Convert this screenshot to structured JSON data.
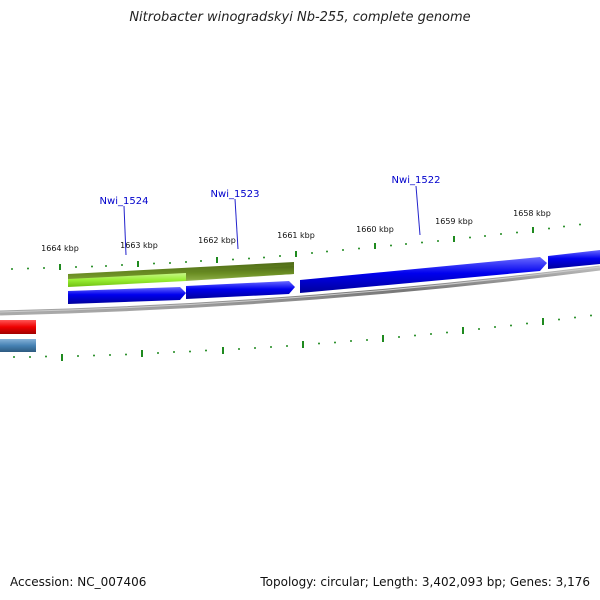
{
  "title": "Nitrobacter winogradskyi Nb-255, complete genome",
  "footer": {
    "accession": "Accession: NC_007406",
    "summary": "Topology: circular; Length: 3,402,093 bp; Genes: 3,176"
  },
  "colors": {
    "backbone": "#888888",
    "tick": "#1f8a1f",
    "tick_label": "#111111",
    "gene_label": "#0000cc",
    "forward_gene": "#0000ee",
    "olive_gene": "#6b8e23",
    "lime_gene": "#99ee33",
    "red_feature": "#ee0000",
    "steelblue_feature": "#4682b4"
  },
  "outer_ruler_labels": [
    "1664 kbp",
    "1663 kbp",
    "1662 kbp",
    "1661 kbp",
    "1660 kbp",
    "1659 kbp",
    "1658 kbp"
  ],
  "gene_labels": [
    "Nwi_1524",
    "Nwi_1523",
    "Nwi_1522"
  ]
}
